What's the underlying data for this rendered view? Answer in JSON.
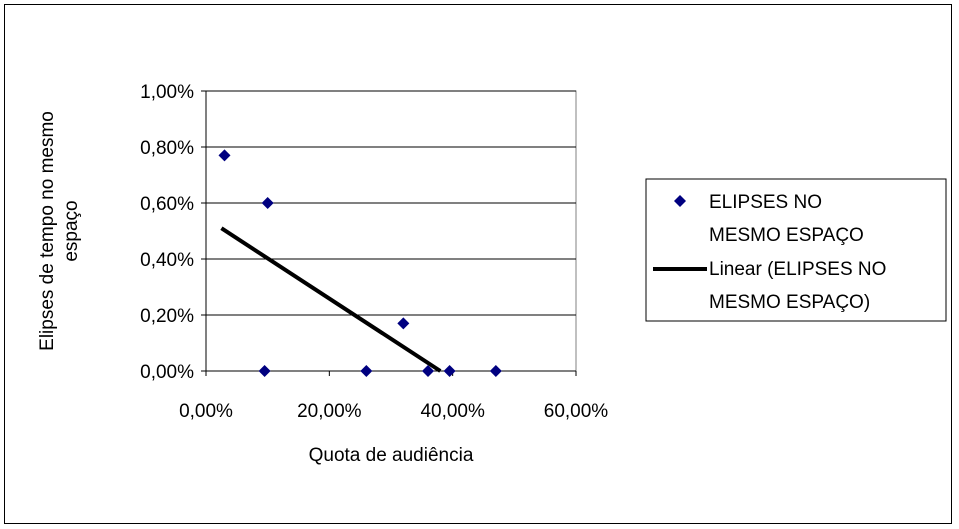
{
  "chart_data": {
    "type": "scatter",
    "xlabel": "Quota de audiência",
    "ylabel_lines": [
      "Elipses de tempo no mesmo",
      "espaço"
    ],
    "xlim": [
      0,
      0.6
    ],
    "ylim": [
      0,
      0.01
    ],
    "x_ticks": [
      0,
      0.2,
      0.4,
      0.6
    ],
    "x_tick_labels": [
      "0,00%",
      "20,00%",
      "40,00%",
      "60,00%"
    ],
    "y_ticks": [
      0,
      0.002,
      0.004,
      0.006,
      0.008,
      0.01
    ],
    "y_tick_labels": [
      "0,00%",
      "0,20%",
      "0,40%",
      "0,60%",
      "0,80%",
      "1,00%"
    ],
    "grid": "horizontal",
    "legend_position": "right",
    "series": [
      {
        "name": "ELIPSES NO MESMO ESPAÇO",
        "legend_lines": [
          "ELIPSES NO",
          "MESMO ESPAÇO"
        ],
        "marker": "diamond",
        "color": "#000080",
        "points": [
          {
            "x": 0.03,
            "y": 0.0077
          },
          {
            "x": 0.1,
            "y": 0.006
          },
          {
            "x": 0.095,
            "y": 0.0
          },
          {
            "x": 0.26,
            "y": 0.0
          },
          {
            "x": 0.32,
            "y": 0.0017
          },
          {
            "x": 0.36,
            "y": 0.0
          },
          {
            "x": 0.395,
            "y": 0.0
          },
          {
            "x": 0.47,
            "y": 0.0
          }
        ]
      }
    ],
    "trendline": {
      "name": "Linear (ELIPSES NO MESMO ESPAÇO)",
      "legend_lines": [
        "Linear (ELIPSES NO",
        "MESMO ESPAÇO)"
      ],
      "type": "linear",
      "color": "#000000",
      "x_range": [
        0.025,
        0.38
      ],
      "y_range": [
        0.0051,
        0.0
      ]
    }
  }
}
